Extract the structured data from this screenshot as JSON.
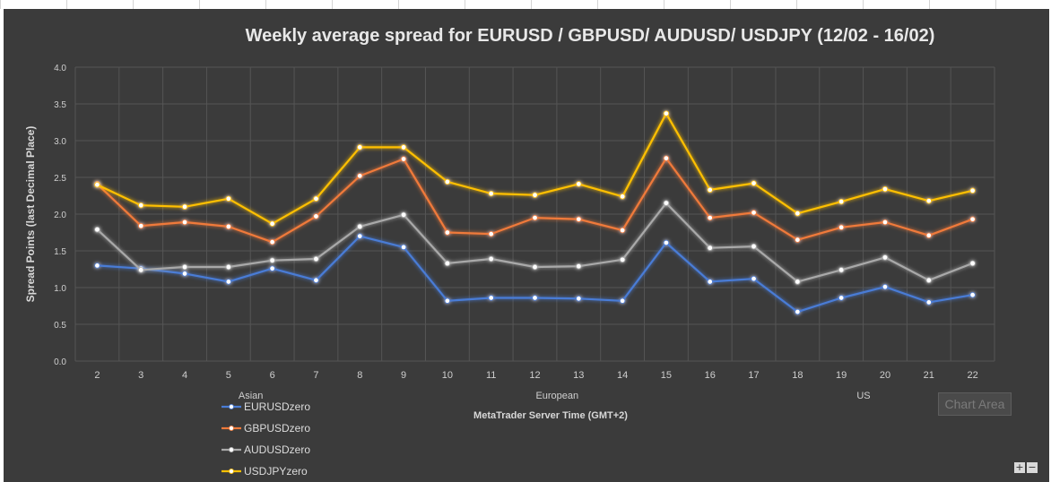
{
  "chart_data": {
    "type": "line",
    "title": "Weekly average spread for EURUSD / GBPUSD/ AUDUSD/ USDJPY  (12/02 - 16/02)",
    "xlabel": "MetaTrader Server Time (GMT+2)",
    "ylabel": "Spread Points  (last Decimal Place)",
    "ylim": [
      0,
      4.0
    ],
    "yticks": [
      "0.0",
      "0.5",
      "1.0",
      "1.5",
      "2.0",
      "2.5",
      "3.0",
      "3.5",
      "4.0"
    ],
    "categories": [
      "2",
      "3",
      "4",
      "5",
      "6",
      "7",
      "8",
      "9",
      "10",
      "11",
      "12",
      "13",
      "14",
      "15",
      "16",
      "17",
      "18",
      "19",
      "20",
      "21",
      "22"
    ],
    "sessions": [
      {
        "label": "Asian",
        "category": "6"
      },
      {
        "label": "European",
        "category": "13"
      },
      {
        "label": "US",
        "category": "20"
      }
    ],
    "grid": true,
    "legend_position": "bottom-left",
    "series": [
      {
        "name": "EURUSDzero",
        "color": "#4a7cd6",
        "values": [
          1.3,
          1.26,
          1.19,
          1.08,
          1.26,
          1.1,
          1.7,
          1.55,
          0.82,
          0.86,
          0.86,
          0.85,
          0.82,
          1.61,
          1.08,
          1.12,
          0.67,
          0.86,
          1.01,
          0.8,
          0.9
        ]
      },
      {
        "name": "GBPUSDzero",
        "color": "#f07a3a",
        "values": [
          2.41,
          1.84,
          1.89,
          1.83,
          1.62,
          1.97,
          2.52,
          2.75,
          1.75,
          1.73,
          1.95,
          1.93,
          1.78,
          2.76,
          1.95,
          2.02,
          1.65,
          1.82,
          1.89,
          1.71,
          1.93
        ]
      },
      {
        "name": "AUDUSDzero",
        "color": "#a9a9a9",
        "values": [
          1.79,
          1.24,
          1.28,
          1.28,
          1.37,
          1.39,
          1.83,
          1.99,
          1.33,
          1.39,
          1.28,
          1.29,
          1.38,
          2.15,
          1.54,
          1.56,
          1.08,
          1.24,
          1.41,
          1.1,
          1.33
        ]
      },
      {
        "name": "USDJPYzero",
        "color": "#ffc000",
        "values": [
          2.4,
          2.12,
          2.1,
          2.21,
          1.87,
          2.21,
          2.91,
          2.91,
          2.44,
          2.28,
          2.26,
          2.41,
          2.24,
          3.37,
          2.33,
          2.42,
          2.01,
          2.17,
          2.34,
          2.18,
          2.32
        ]
      }
    ]
  },
  "ui": {
    "tooltip": "Chart Area",
    "plus_label": "+",
    "minus_label": "−"
  }
}
